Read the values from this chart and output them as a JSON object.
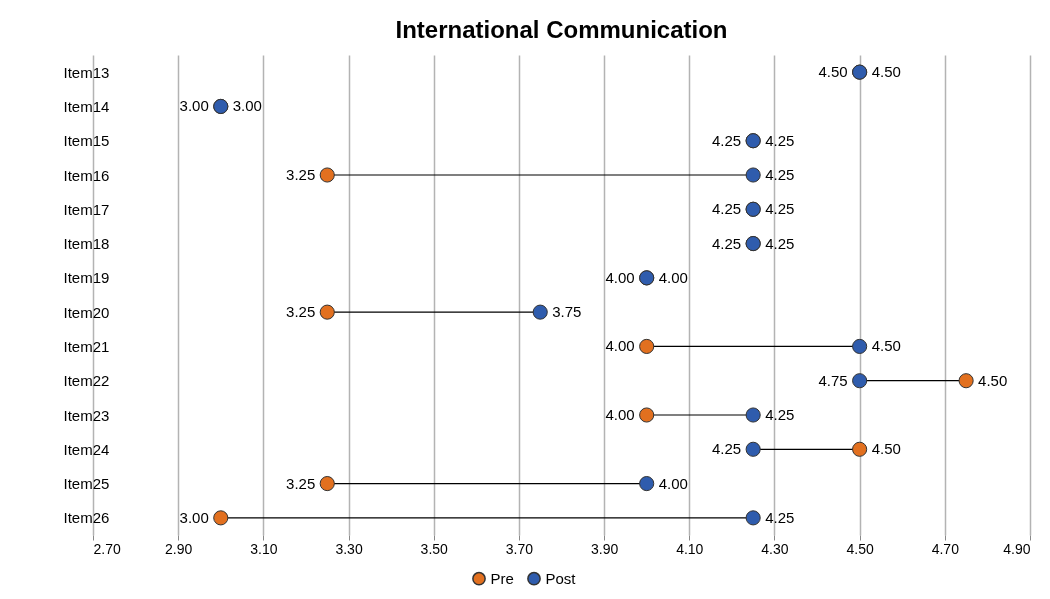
{
  "chart_data": {
    "type": "scatter",
    "title": "International Communication",
    "categories": [
      "Item13",
      "Item14",
      "Item15",
      "Item16",
      "Item17",
      "Item18",
      "Item19",
      "Item20",
      "Item21",
      "Item22",
      "Item23",
      "Item24",
      "Item25",
      "Item26"
    ],
    "series": [
      {
        "name": "Pre",
        "color": "#e2701f",
        "values": [
          4.5,
          3.0,
          4.25,
          3.25,
          4.25,
          4.25,
          4.0,
          3.25,
          4.0,
          4.75,
          4.0,
          4.5,
          3.25,
          3.0
        ],
        "value_labels": [
          "4.50",
          "3.00",
          "4.25",
          "3.25",
          "4.25",
          "4.25",
          "4.00",
          "3.25",
          "4.00",
          null,
          "4.00",
          "4.50",
          "3.25",
          "3.00"
        ]
      },
      {
        "name": "Post",
        "color": "#2f5cad",
        "values": [
          4.5,
          3.0,
          4.25,
          4.25,
          4.25,
          4.25,
          4.0,
          3.75,
          4.5,
          4.5,
          4.25,
          4.25,
          4.0,
          4.25
        ],
        "value_labels": [
          "4.50",
          "3.00",
          "4.25",
          "4.25",
          "4.25",
          "4.25",
          "4.00",
          "3.75",
          "4.50",
          null,
          "4.25",
          "4.25",
          "4.00",
          "4.25"
        ]
      }
    ],
    "annotations": [
      {
        "text": "4.50",
        "x": 4.75,
        "y": "Item22"
      },
      {
        "text": "4.75",
        "x": 4.5,
        "y": "Item22"
      }
    ],
    "xlim": [
      2.7,
      4.9
    ],
    "xticks": [
      {
        "value": 2.7,
        "label": "2.70"
      },
      {
        "value": 2.9,
        "label": "2.90"
      },
      {
        "value": 3.1,
        "label": "3.10"
      },
      {
        "value": 3.3,
        "label": "3.30"
      },
      {
        "value": 3.5,
        "label": "3.50"
      },
      {
        "value": 3.7,
        "label": "3.70"
      },
      {
        "value": 3.9,
        "label": "3.90"
      },
      {
        "value": 4.1,
        "label": "4.10"
      },
      {
        "value": 4.3,
        "label": "4.30"
      },
      {
        "value": 4.5,
        "label": "4.50"
      },
      {
        "value": 4.7,
        "label": "4.70"
      },
      {
        "value": 4.9,
        "label": "4.90"
      }
    ],
    "orientation": "horizontal",
    "grid": "x",
    "legend": "bottom",
    "marker": "circle"
  }
}
